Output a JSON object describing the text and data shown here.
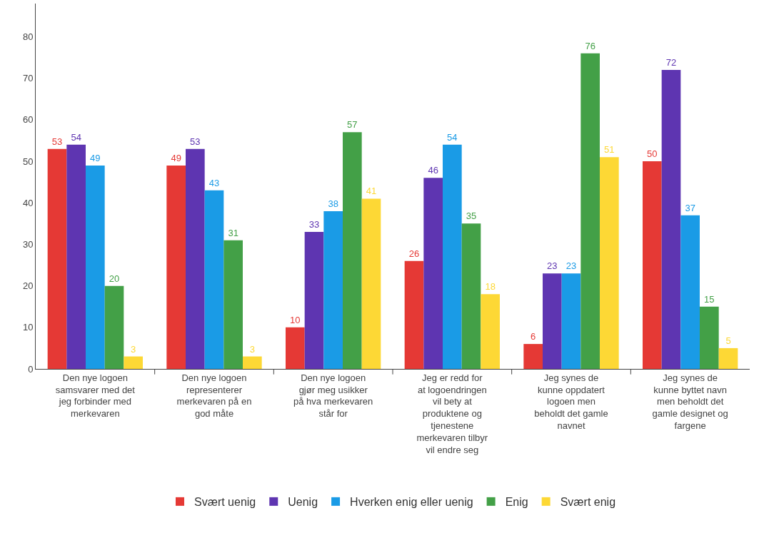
{
  "chart_data": {
    "type": "bar",
    "categories": [
      "Den nye logoen samsvarer med det jeg forbinder med merkevaren",
      "Den nye logoen representerer merkevaren på en god måte",
      "Den nye logoen gjør meg usikker på hva merkevaren står for",
      "Jeg er redd for at logoendringen vil bety at produktene og tjenestene merkevaren tilbyr vil endre seg",
      "Jeg synes de kunne oppdatert logoen men beholdt det gamle navnet",
      "Jeg synes de kunne byttet navn men beholdt det gamle designet og fargene"
    ],
    "series": [
      {
        "name": "Svært uenig",
        "color": "#e53935",
        "values": [
          53,
          49,
          10,
          26,
          6,
          50
        ]
      },
      {
        "name": "Uenig",
        "color": "#5e35b1",
        "values": [
          54,
          53,
          33,
          46,
          23,
          72
        ]
      },
      {
        "name": "Hverken enig eller uenig",
        "color": "#1a9be6",
        "values": [
          49,
          43,
          38,
          54,
          23,
          37
        ]
      },
      {
        "name": "Enig",
        "color": "#43a047",
        "values": [
          20,
          31,
          57,
          35,
          76,
          15
        ]
      },
      {
        "name": "Svært enig",
        "color": "#fdd835",
        "values": [
          3,
          3,
          41,
          18,
          51,
          5
        ]
      }
    ],
    "ylim": [
      0,
      88
    ],
    "yticks": [
      0,
      10,
      20,
      30,
      40,
      50,
      60,
      70,
      80
    ],
    "grid": false,
    "legend": "bottom",
    "data_labels": true
  }
}
